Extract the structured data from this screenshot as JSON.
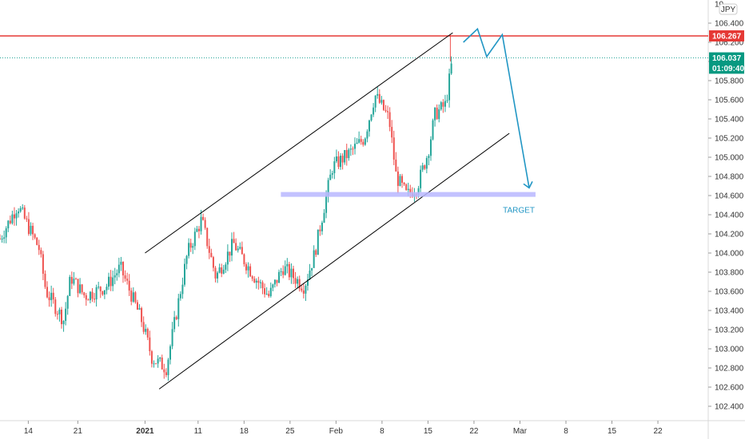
{
  "chart_data": {
    "type": "candlestick",
    "title": "",
    "axis": {
      "y_min": 102.2,
      "y_max": 106.8,
      "y_ticks": [
        "106.400",
        "106.200",
        "106.000",
        "105.800",
        "105.600",
        "105.400",
        "105.200",
        "105.000",
        "104.800",
        "104.600",
        "104.400",
        "104.200",
        "104.000",
        "103.800",
        "103.600",
        "103.400",
        "103.200",
        "103.000",
        "102.800",
        "102.600",
        "102.400"
      ],
      "top_partial_tick": "10",
      "x_ticks": [
        {
          "label": "14",
          "t": 0.04
        },
        {
          "label": "21",
          "t": 0.11
        },
        {
          "label": "2021",
          "t": 0.205,
          "bold": true
        },
        {
          "label": "11",
          "t": 0.28
        },
        {
          "label": "18",
          "t": 0.345
        },
        {
          "label": "25",
          "t": 0.41
        },
        {
          "label": "Feb",
          "t": 0.475
        },
        {
          "label": "8",
          "t": 0.54
        },
        {
          "label": "15",
          "t": 0.605
        },
        {
          "label": "22",
          "t": 0.67
        },
        {
          "label": "Mar",
          "t": 0.735
        },
        {
          "label": "8",
          "t": 0.8
        },
        {
          "label": "15",
          "t": 0.865
        },
        {
          "label": "22",
          "t": 0.93
        }
      ],
      "symbol_label": "JPY"
    },
    "price_badges": [
      {
        "value": "106.267",
        "price": 106.267,
        "color": "#e53935"
      },
      {
        "value": "106.037",
        "price": 106.037,
        "color": "#089981"
      },
      {
        "value": "01:09:40",
        "price": 105.93,
        "color": "#089981"
      }
    ],
    "resistance_line": {
      "price": 106.267,
      "color": "#e53935"
    },
    "last_price_line": {
      "price": 106.037,
      "color": "#26a69a"
    },
    "channel": {
      "upper": [
        {
          "t": 0.205,
          "p": 104.0
        },
        {
          "t": 0.64,
          "p": 106.3
        }
      ],
      "lower": [
        {
          "t": 0.225,
          "p": 102.58
        },
        {
          "t": 0.72,
          "p": 105.25
        }
      ]
    },
    "target_zone": {
      "price_low": 104.57,
      "price_high": 104.62,
      "t_start": 0.397,
      "t_end": 0.757,
      "label": "TARGET",
      "color": "#b9b7ff",
      "label_color": "#2196c4"
    },
    "projection": {
      "points": [
        {
          "t": 0.655,
          "p": 106.2
        },
        {
          "t": 0.675,
          "p": 106.34
        },
        {
          "t": 0.688,
          "p": 106.05
        },
        {
          "t": 0.71,
          "p": 106.28
        },
        {
          "t": 0.748,
          "p": 104.68
        }
      ],
      "color": "#2196c4"
    },
    "candle_colors": {
      "up": "#26a69a",
      "down": "#ef5350"
    },
    "segments": [
      {
        "t": 0.0,
        "p": 104.15
      },
      {
        "t": 0.025,
        "p": 104.5
      },
      {
        "t": 0.055,
        "p": 104.05
      },
      {
        "t": 0.065,
        "p": 103.6
      },
      {
        "t": 0.09,
        "p": 103.3
      },
      {
        "t": 0.1,
        "p": 103.75
      },
      {
        "t": 0.12,
        "p": 103.55
      },
      {
        "t": 0.15,
        "p": 103.65
      },
      {
        "t": 0.17,
        "p": 103.85
      },
      {
        "t": 0.2,
        "p": 103.3
      },
      {
        "t": 0.215,
        "p": 102.9
      },
      {
        "t": 0.235,
        "p": 102.8
      },
      {
        "t": 0.265,
        "p": 104.0
      },
      {
        "t": 0.285,
        "p": 104.35
      },
      {
        "t": 0.305,
        "p": 103.75
      },
      {
        "t": 0.33,
        "p": 104.1
      },
      {
        "t": 0.36,
        "p": 103.75
      },
      {
        "t": 0.38,
        "p": 103.55
      },
      {
        "t": 0.4,
        "p": 103.85
      },
      {
        "t": 0.43,
        "p": 103.65
      },
      {
        "t": 0.445,
        "p": 104.0
      },
      {
        "t": 0.46,
        "p": 104.55
      },
      {
        "t": 0.47,
        "p": 104.9
      },
      {
        "t": 0.495,
        "p": 105.05
      },
      {
        "t": 0.515,
        "p": 105.2
      },
      {
        "t": 0.53,
        "p": 105.65
      },
      {
        "t": 0.55,
        "p": 105.4
      },
      {
        "t": 0.56,
        "p": 104.8
      },
      {
        "t": 0.575,
        "p": 104.6
      },
      {
        "t": 0.59,
        "p": 104.7
      },
      {
        "t": 0.605,
        "p": 105.05
      },
      {
        "t": 0.615,
        "p": 105.45
      },
      {
        "t": 0.63,
        "p": 105.55
      },
      {
        "t": 0.64,
        "p": 106.05
      }
    ]
  }
}
